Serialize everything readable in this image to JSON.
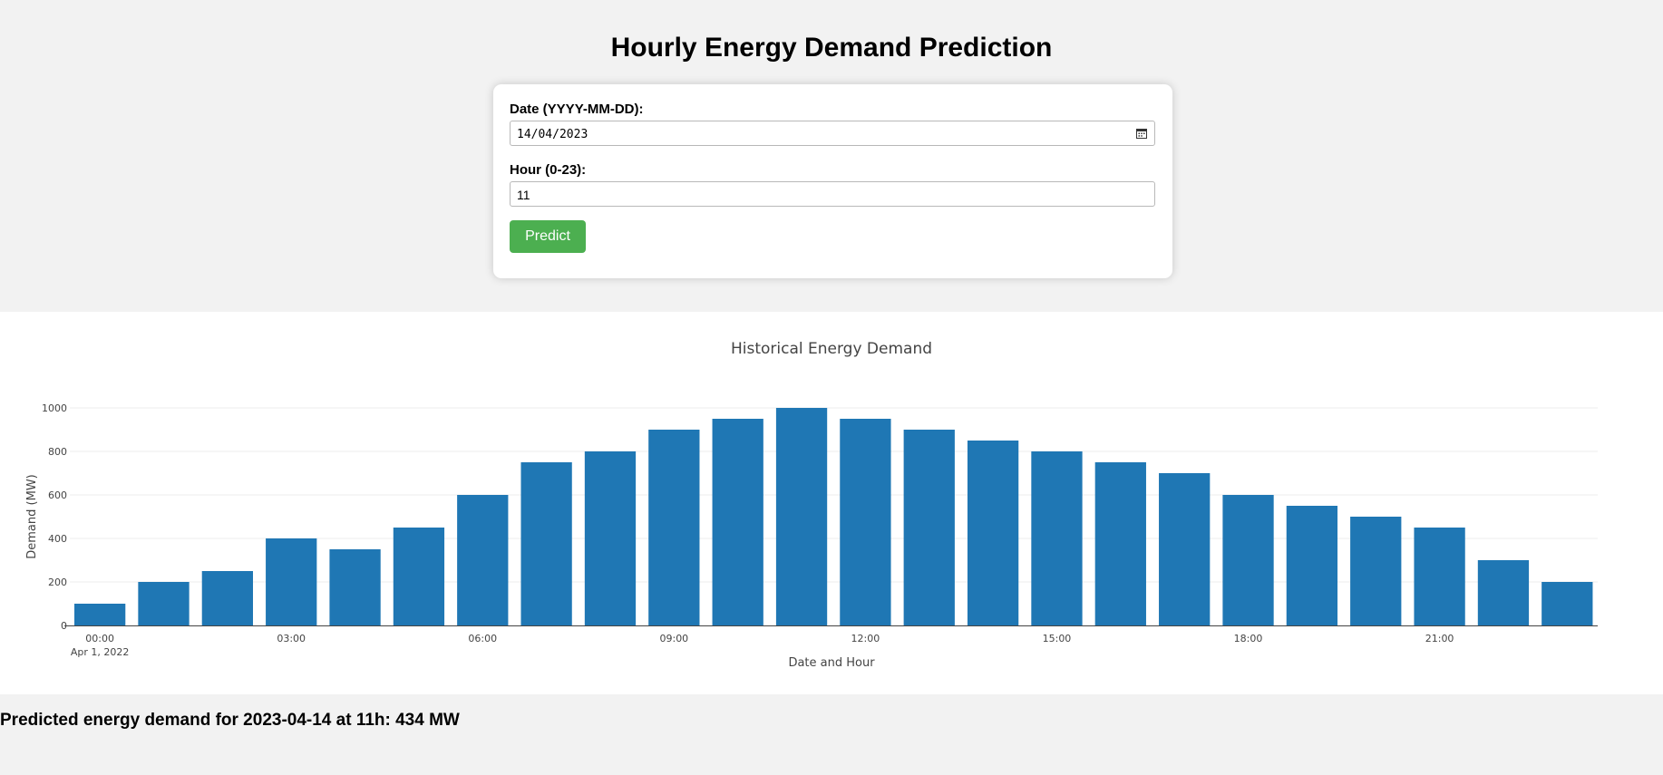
{
  "header": {
    "title": "Hourly Energy Demand Prediction"
  },
  "form": {
    "date_label": "Date (YYYY-MM-DD):",
    "date_value": "14/04/2023",
    "hour_label": "Hour (0-23):",
    "hour_value": "11",
    "predict_label": "Predict"
  },
  "colors": {
    "accent": "#4caf50",
    "bar": "#1f77b4",
    "page_background": "#f2f2f2"
  },
  "icons": {
    "date_picker": "calendar-icon"
  },
  "chart_data": {
    "type": "bar",
    "title": "Historical Energy Demand",
    "xlabel": "Date and Hour",
    "ylabel": "Demand (MW)",
    "x_date_label": "Apr 1, 2022",
    "categories": [
      "00:00",
      "01:00",
      "02:00",
      "03:00",
      "04:00",
      "05:00",
      "06:00",
      "07:00",
      "08:00",
      "09:00",
      "10:00",
      "11:00",
      "12:00",
      "13:00",
      "14:00",
      "15:00",
      "16:00",
      "17:00",
      "18:00",
      "19:00",
      "20:00",
      "21:00",
      "22:00",
      "23:00"
    ],
    "values": [
      100,
      200,
      250,
      400,
      350,
      450,
      600,
      750,
      800,
      900,
      950,
      1000,
      950,
      900,
      850,
      800,
      750,
      700,
      600,
      550,
      500,
      450,
      300,
      200
    ],
    "x_tick_labels": [
      "00:00",
      "03:00",
      "06:00",
      "09:00",
      "12:00",
      "15:00",
      "18:00",
      "21:00"
    ],
    "y_ticks": [
      0,
      200,
      400,
      600,
      800,
      1000
    ],
    "ylim": [
      0,
      1000
    ],
    "grid": true,
    "legend": "none"
  },
  "result": {
    "text": "Predicted energy demand for 2023-04-14 at 11h: 434 MW"
  }
}
